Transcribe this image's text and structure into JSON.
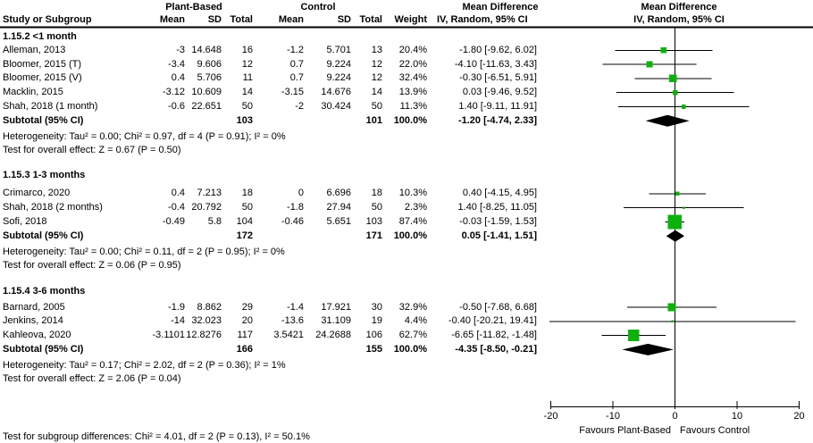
{
  "header": {
    "group1": "Plant-Based",
    "group2": "Control",
    "effect_label": "Mean Difference",
    "method_label": "IV, Random, 95% CI",
    "col_study": "Study or Subgroup",
    "col_mean": "Mean",
    "col_sd": "SD",
    "col_total": "Total",
    "col_weight": "Weight"
  },
  "footer": {
    "subgroup_test": "Test for subgroup differences: Chi² = 4.01, df = 2 (P = 0.13), I² = 50.1%"
  },
  "colors": {
    "marker": "#0db10d",
    "diamond": "#000000",
    "line": "#000000"
  },
  "chart_data": {
    "type": "forest",
    "effect_measure": "Mean Difference",
    "method": "IV, Random, 95% CI",
    "axis": {
      "xlim": [
        -20,
        20
      ],
      "ticks": [
        -20,
        -10,
        0,
        10,
        20
      ],
      "favours_left": "Favours Plant-Based",
      "favours_right": "Favours Control"
    },
    "sections": [
      {
        "label": "1.15.2 <1 month",
        "studies": [
          {
            "name": "Alleman, 2013",
            "mean1": "-3",
            "sd1": "14.648",
            "total1": "16",
            "mean2": "-1.2",
            "sd2": "5.701",
            "total2": "13",
            "weight": "20.4%",
            "w": 20.4,
            "ci_text": "-1.80 [-9.62, 6.02]",
            "est": -1.8,
            "lo": -9.62,
            "hi": 6.02
          },
          {
            "name": "Bloomer, 2015 (T)",
            "mean1": "-3.4",
            "sd1": "9.606",
            "total1": "12",
            "mean2": "0.7",
            "sd2": "9.224",
            "total2": "12",
            "weight": "22.0%",
            "w": 22.0,
            "ci_text": "-4.10 [-11.63, 3.43]",
            "est": -4.1,
            "lo": -11.63,
            "hi": 3.43
          },
          {
            "name": "Bloomer, 2015 (V)",
            "mean1": "0.4",
            "sd1": "5.706",
            "total1": "11",
            "mean2": "0.7",
            "sd2": "9.224",
            "total2": "12",
            "weight": "32.4%",
            "w": 32.4,
            "ci_text": "-0.30 [-6.51, 5.91]",
            "est": -0.3,
            "lo": -6.51,
            "hi": 5.91
          },
          {
            "name": "Macklin, 2015",
            "mean1": "-3.12",
            "sd1": "10.609",
            "total1": "14",
            "mean2": "-3.15",
            "sd2": "14.676",
            "total2": "14",
            "weight": "13.9%",
            "w": 13.9,
            "ci_text": "0.03 [-9.46, 9.52]",
            "est": 0.03,
            "lo": -9.46,
            "hi": 9.52
          },
          {
            "name": "Shah, 2018 (1 month)",
            "mean1": "-0.6",
            "sd1": "22.651",
            "total1": "50",
            "mean2": "-2",
            "sd2": "30.424",
            "total2": "50",
            "weight": "11.3%",
            "w": 11.3,
            "ci_text": "1.40 [-9.11, 11.91]",
            "est": 1.4,
            "lo": -9.11,
            "hi": 11.91
          }
        ],
        "subtotal": {
          "label": "Subtotal (95% CI)",
          "total1": "103",
          "total2": "101",
          "weight": "100.0%",
          "ci_text": "-1.20 [-4.74, 2.33]",
          "est": -1.2,
          "lo": -4.74,
          "hi": 2.33
        },
        "heterogeneity": "Heterogeneity: Tau² = 0.00; Chi² = 0.97, df = 4 (P = 0.91); I² = 0%",
        "overall_effect": "Test for overall effect: Z = 0.67 (P = 0.50)"
      },
      {
        "label": "1.15.3 1-3 months",
        "studies": [
          {
            "name": "Crimarco, 2020",
            "mean1": "0.4",
            "sd1": "7.213",
            "total1": "18",
            "mean2": "0",
            "sd2": "6.696",
            "total2": "18",
            "weight": "10.3%",
            "w": 10.3,
            "ci_text": "0.40 [-4.15, 4.95]",
            "est": 0.4,
            "lo": -4.15,
            "hi": 4.95
          },
          {
            "name": "Shah, 2018 (2 months)",
            "mean1": "-0.4",
            "sd1": "20.792",
            "total1": "50",
            "mean2": "-1.8",
            "sd2": "27.94",
            "total2": "50",
            "weight": "2.3%",
            "w": 2.3,
            "ci_text": "1.40 [-8.25, 11.05]",
            "est": 1.4,
            "lo": -8.25,
            "hi": 11.05
          },
          {
            "name": "Sofi, 2018",
            "mean1": "-0.49",
            "sd1": "5.8",
            "total1": "104",
            "mean2": "-0.46",
            "sd2": "5.651",
            "total2": "103",
            "weight": "87.4%",
            "w": 87.4,
            "ci_text": "-0.03 [-1.59, 1.53]",
            "est": -0.03,
            "lo": -1.59,
            "hi": 1.53
          }
        ],
        "subtotal": {
          "label": "Subtotal (95% CI)",
          "total1": "172",
          "total2": "171",
          "weight": "100.0%",
          "ci_text": "0.05 [-1.41, 1.51]",
          "est": 0.05,
          "lo": -1.41,
          "hi": 1.51
        },
        "heterogeneity": "Heterogeneity: Tau² = 0.00; Chi² = 0.11, df = 2 (P = 0.95); I² = 0%",
        "overall_effect": "Test for overall effect: Z = 0.06 (P = 0.95)"
      },
      {
        "label": "1.15.4 3-6 months",
        "studies": [
          {
            "name": "Barnard, 2005",
            "mean1": "-1.9",
            "sd1": "8.862",
            "total1": "29",
            "mean2": "-1.4",
            "sd2": "17.921",
            "total2": "30",
            "weight": "32.9%",
            "w": 32.9,
            "ci_text": "-0.50 [-7.68, 6.68]",
            "est": -0.5,
            "lo": -7.68,
            "hi": 6.68
          },
          {
            "name": "Jenkins, 2014",
            "mean1": "-14",
            "sd1": "32.023",
            "total1": "20",
            "mean2": "-13.6",
            "sd2": "31.109",
            "total2": "19",
            "weight": "4.4%",
            "w": 4.4,
            "ci_text": "-0.40 [-20.21, 19.41]",
            "est": -0.4,
            "lo": -20.21,
            "hi": 19.41
          },
          {
            "name": "Kahleova, 2020",
            "mean1": "-3.1101",
            "sd1": "12.8276",
            "total1": "117",
            "mean2": "3.5421",
            "sd2": "24.2688",
            "total2": "106",
            "weight": "62.7%",
            "w": 62.7,
            "ci_text": "-6.65 [-11.82, -1.48]",
            "est": -6.65,
            "lo": -11.82,
            "hi": -1.48
          }
        ],
        "subtotal": {
          "label": "Subtotal (95% CI)",
          "total1": "166",
          "total2": "155",
          "weight": "100.0%",
          "ci_text": "-4.35 [-8.50, -0.21]",
          "est": -4.35,
          "lo": -8.5,
          "hi": -0.21
        },
        "heterogeneity": "Heterogeneity: Tau² = 0.17; Chi² = 2.02, df = 2 (P = 0.36); I² = 1%",
        "overall_effect": "Test for overall effect: Z = 2.06 (P = 0.04)"
      }
    ]
  }
}
